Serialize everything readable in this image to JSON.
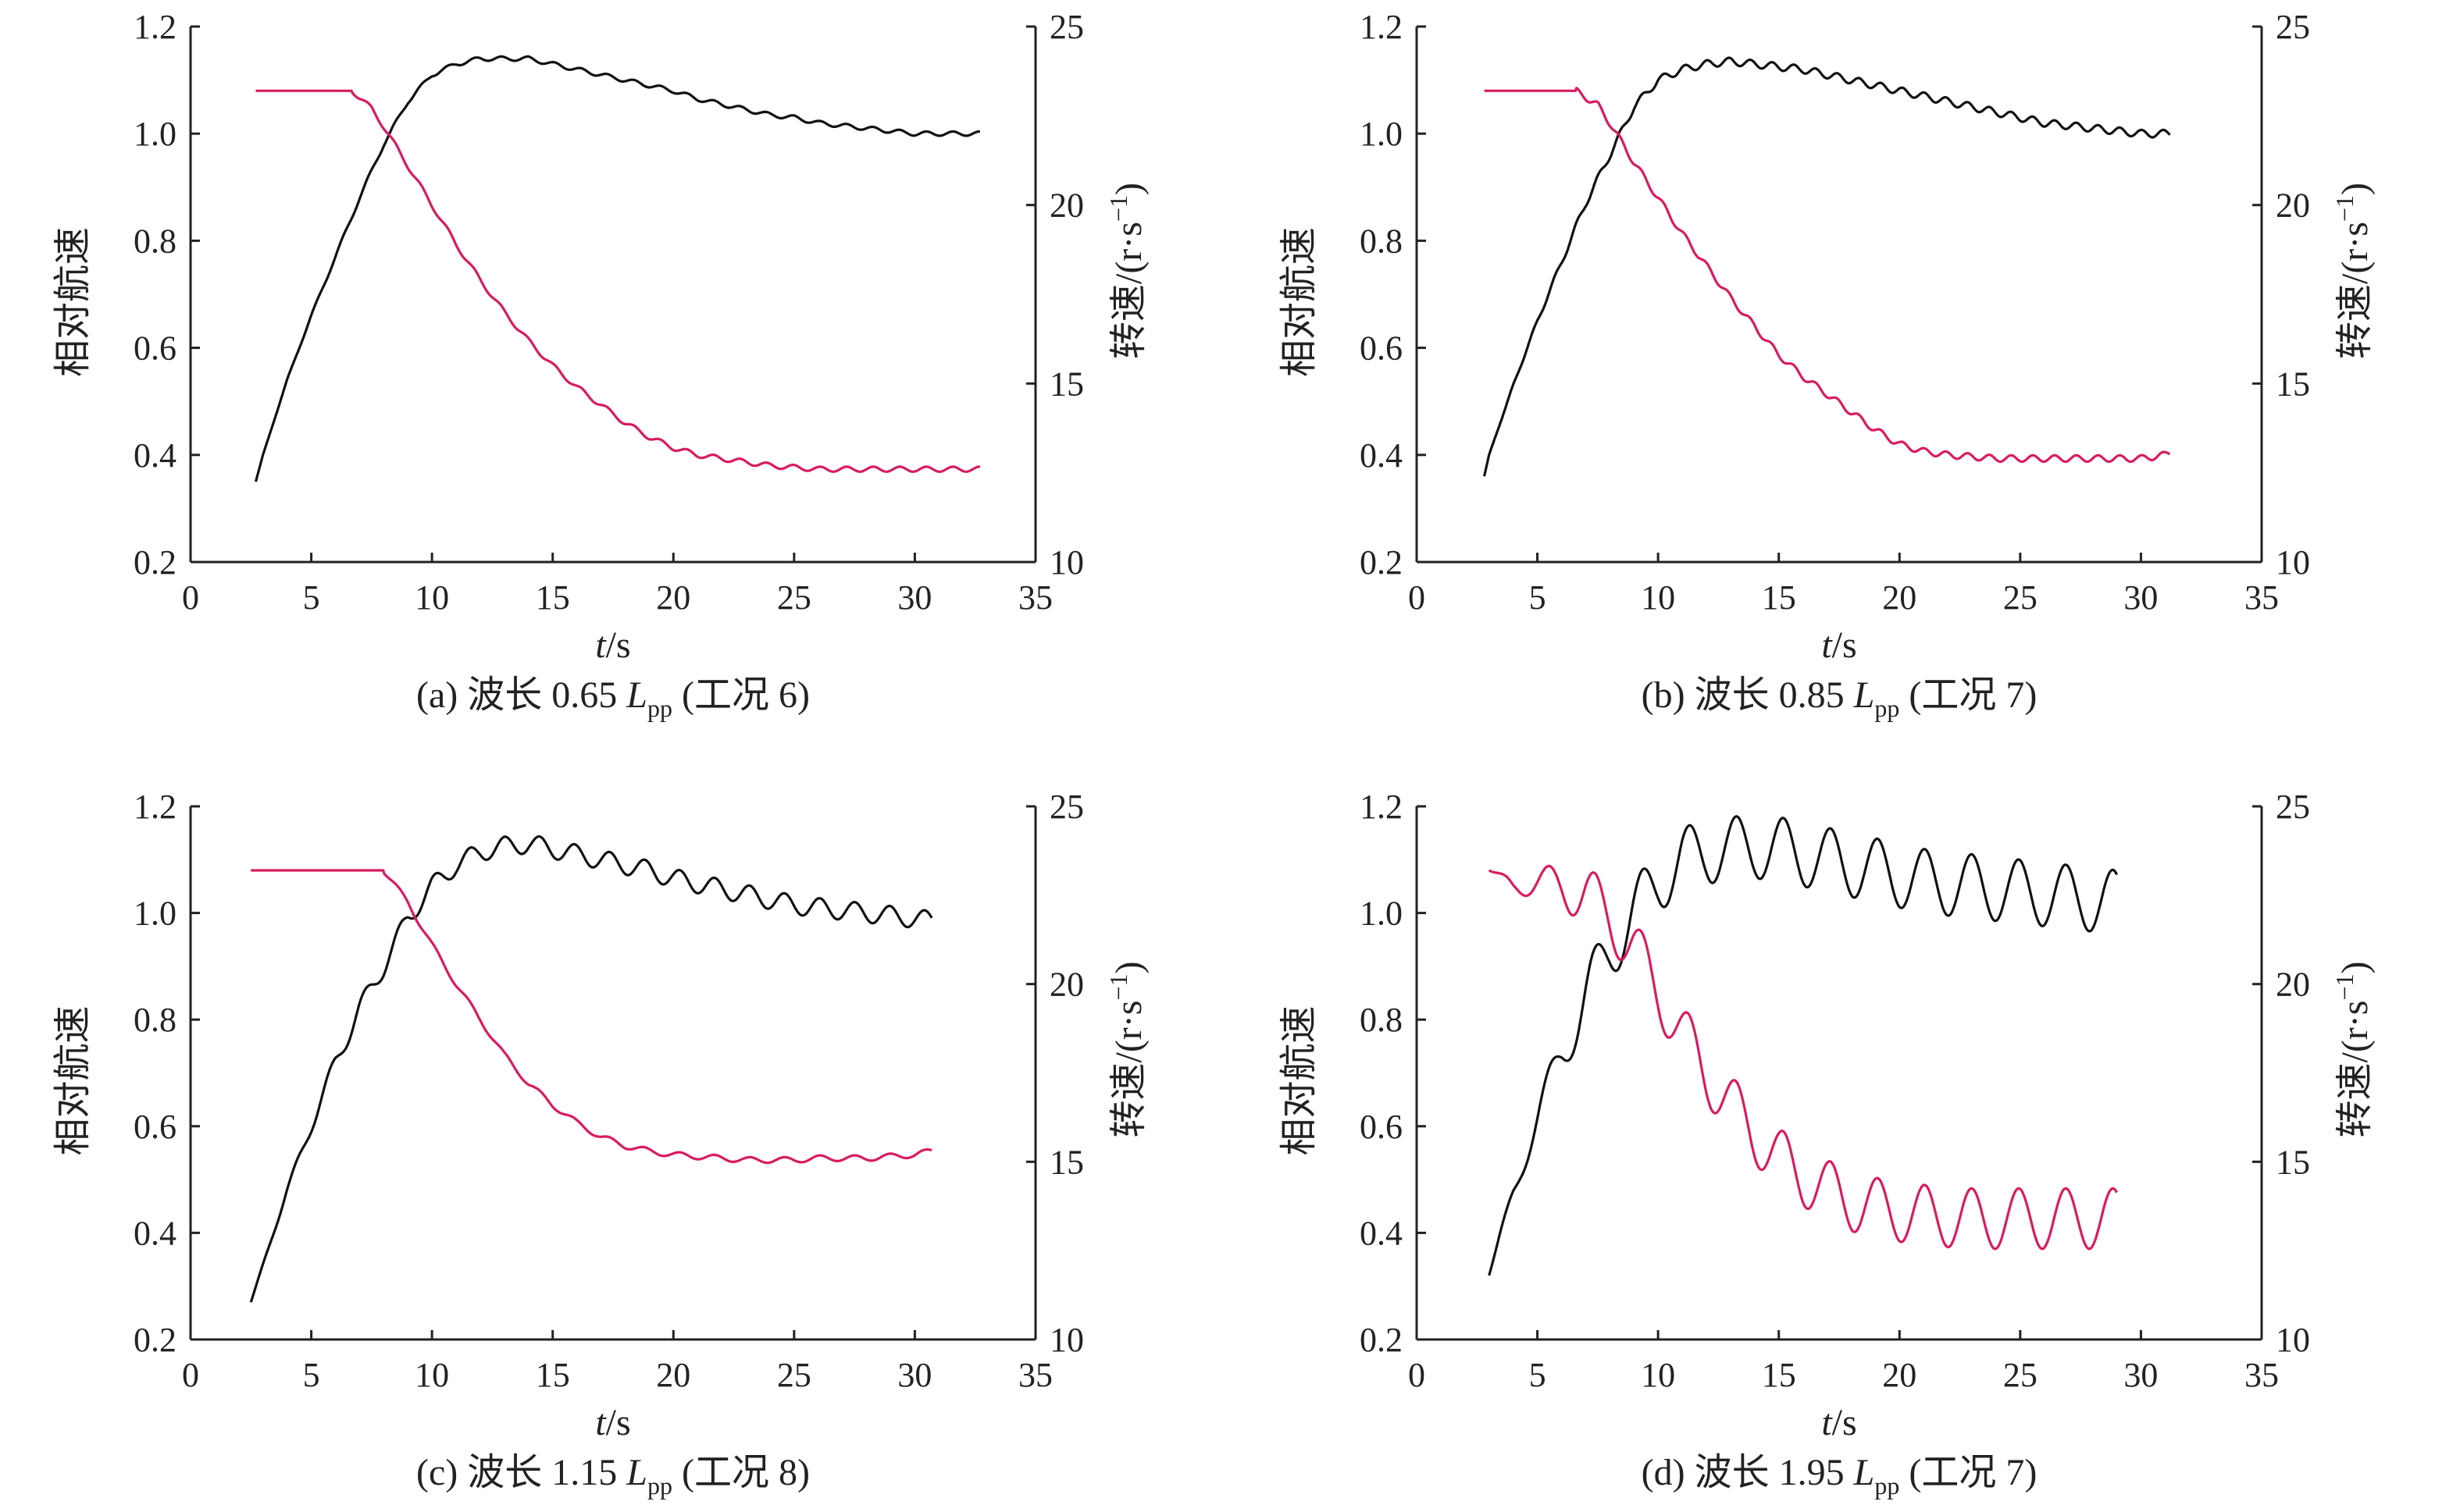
{
  "figure": {
    "panels": [
      {
        "caption_prefix": "(a) 波长 0.65 ",
        "caption_symbol": "L",
        "caption_subscript": "pp",
        "caption_suffix": " (工况 6)"
      },
      {
        "caption_prefix": "(b) 波长 0.85 ",
        "caption_symbol": "L",
        "caption_subscript": "pp",
        "caption_suffix": " (工况 7)"
      },
      {
        "caption_prefix": "(c) 波长 1.15 ",
        "caption_symbol": "L",
        "caption_subscript": "pp",
        "caption_suffix": " (工况 8)"
      },
      {
        "caption_prefix": "(d) 波长 1.95 ",
        "caption_symbol": "L",
        "caption_subscript": "pp",
        "caption_suffix": " (工况 7)"
      }
    ],
    "xlabel_var": "t",
    "xlabel_unit": "/s",
    "ylabel_left": "相对航速",
    "ylabel_right_prefix": "转速/(r·s",
    "ylabel_right_sup": "−1",
    "ylabel_right_suffix": ")"
  },
  "chart_data": [
    {
      "type": "line",
      "xlabel": "t/s",
      "ylabel": "相对航速",
      "ylabel_right": "转速/(r·s−1)",
      "xlim": [
        0,
        35
      ],
      "ylim": [
        0.2,
        1.2
      ],
      "ylim_right": [
        10,
        25
      ],
      "xticks": [
        0,
        5,
        10,
        15,
        20,
        25,
        30,
        35
      ],
      "yticks": [
        0.2,
        0.4,
        0.6,
        0.8,
        1.0,
        1.2
      ],
      "yticks_right": [
        10,
        15,
        20,
        25
      ],
      "series": [
        {
          "axis": "left",
          "color": "#111111",
          "x": [
            2.7,
            3,
            4,
            5,
            6,
            7,
            8,
            9,
            10,
            11,
            12,
            13,
            14,
            15,
            16,
            17,
            18,
            19,
            20,
            21,
            22,
            23,
            24,
            25,
            26,
            27,
            28,
            29,
            30,
            31,
            32,
            32.7
          ],
          "y": [
            0.35,
            0.4,
            0.54,
            0.66,
            0.77,
            0.88,
            0.98,
            1.06,
            1.11,
            1.13,
            1.14,
            1.14,
            1.14,
            1.13,
            1.12,
            1.11,
            1.1,
            1.09,
            1.08,
            1.065,
            1.055,
            1.045,
            1.035,
            1.03,
            1.02,
            1.015,
            1.01,
            1.005,
            1.0,
            1.0,
            1.0,
            1.0
          ],
          "ripple": {
            "amplitude": 0.004,
            "period": 1.1
          }
        },
        {
          "axis": "right",
          "color": "#d81b60",
          "x": [
            2.7,
            6.7,
            7.5,
            8,
            9,
            10,
            11,
            12,
            13,
            14,
            15,
            16,
            17,
            18,
            19,
            20,
            21,
            22,
            23,
            24,
            25,
            26,
            27,
            28,
            29,
            30,
            31,
            32,
            32.7
          ],
          "y": [
            23.2,
            23.2,
            22.7,
            22.2,
            21.1,
            20.0,
            18.9,
            17.9,
            17.0,
            16.2,
            15.5,
            14.9,
            14.4,
            13.9,
            13.5,
            13.2,
            13.0,
            12.9,
            12.8,
            12.7,
            12.65,
            12.6,
            12.6,
            12.6,
            12.6,
            12.6,
            12.6,
            12.6,
            12.6
          ],
          "ripple": {
            "amplitude": 0.07,
            "period": 1.1
          }
        }
      ]
    },
    {
      "type": "line",
      "xlabel": "t/s",
      "ylabel": "相对航速",
      "ylabel_right": "转速/(r·s−1)",
      "xlim": [
        0,
        35
      ],
      "ylim": [
        0.2,
        1.2
      ],
      "ylim_right": [
        10,
        25
      ],
      "xticks": [
        0,
        5,
        10,
        15,
        20,
        25,
        30,
        35
      ],
      "yticks": [
        0.2,
        0.4,
        0.6,
        0.8,
        1.0,
        1.2
      ],
      "yticks_right": [
        10,
        15,
        20,
        25
      ],
      "series": [
        {
          "axis": "left",
          "color": "#111111",
          "x": [
            2.8,
            3,
            4,
            5,
            6,
            7,
            8,
            9,
            10,
            11,
            12,
            13,
            14,
            15,
            16,
            17,
            18,
            19,
            20,
            21,
            22,
            23,
            24,
            25,
            26,
            27,
            28,
            29,
            30,
            31,
            31.2
          ],
          "y": [
            0.36,
            0.4,
            0.53,
            0.65,
            0.76,
            0.87,
            0.96,
            1.05,
            1.1,
            1.12,
            1.13,
            1.135,
            1.13,
            1.125,
            1.12,
            1.11,
            1.1,
            1.09,
            1.08,
            1.07,
            1.06,
            1.05,
            1.04,
            1.03,
            1.02,
            1.015,
            1.01,
            1.005,
            1.0,
            1.0,
            1.0
          ],
          "ripple": {
            "amplitude": 0.007,
            "period": 0.9
          }
        },
        {
          "axis": "right",
          "color": "#d81b60",
          "x": [
            2.8,
            6.6,
            7.5,
            8,
            9,
            10,
            11,
            12,
            13,
            14,
            15,
            16,
            17,
            18,
            19,
            20,
            21,
            22,
            23,
            24,
            25,
            26,
            27,
            28,
            29,
            30,
            31,
            31.2
          ],
          "y": [
            23.2,
            23.2,
            22.8,
            22.3,
            21.2,
            20.2,
            19.2,
            18.3,
            17.4,
            16.6,
            15.8,
            15.2,
            14.7,
            14.2,
            13.7,
            13.3,
            13.1,
            13.0,
            12.95,
            12.9,
            12.9,
            12.9,
            12.9,
            12.9,
            12.9,
            12.9,
            13.0,
            13.05
          ],
          "ripple": {
            "amplitude": 0.09,
            "period": 0.9
          }
        }
      ]
    },
    {
      "type": "line",
      "xlabel": "t/s",
      "ylabel": "相对航速",
      "ylabel_right": "转速/(r·s−1)",
      "xlim": [
        0,
        35
      ],
      "ylim": [
        0.2,
        1.2
      ],
      "ylim_right": [
        10,
        25
      ],
      "xticks": [
        0,
        5,
        10,
        15,
        20,
        25,
        30,
        35
      ],
      "yticks": [
        0.2,
        0.4,
        0.6,
        0.8,
        1.0,
        1.2
      ],
      "yticks_right": [
        10,
        15,
        20,
        25
      ],
      "series": [
        {
          "axis": "left",
          "color": "#111111",
          "x": [
            2.5,
            3,
            4,
            5,
            6,
            7,
            8,
            9,
            10,
            11,
            12,
            13,
            14,
            15,
            16,
            17,
            18,
            19,
            20,
            21,
            22,
            23,
            24,
            25,
            26,
            27,
            28,
            29,
            30,
            30.7
          ],
          "y": [
            0.27,
            0.34,
            0.48,
            0.6,
            0.72,
            0.82,
            0.9,
            0.99,
            1.05,
            1.09,
            1.115,
            1.125,
            1.13,
            1.12,
            1.11,
            1.1,
            1.09,
            1.08,
            1.065,
            1.055,
            1.045,
            1.035,
            1.025,
            1.015,
            1.01,
            1.005,
            1.0,
            0.995,
            0.99,
            0.985
          ],
          "ripple": {
            "amplitude": 0.018,
            "period": 1.45
          }
        },
        {
          "axis": "right",
          "color": "#d81b60",
          "x": [
            2.5,
            8.0,
            9,
            10,
            11,
            12,
            13,
            14,
            15,
            16,
            17,
            18,
            19,
            20,
            21,
            22,
            23,
            24,
            25,
            26,
            27,
            28,
            29,
            30,
            30.7
          ],
          "y": [
            23.2,
            23.2,
            22.3,
            21.1,
            20.0,
            19.0,
            18.0,
            17.2,
            16.6,
            16.1,
            15.7,
            15.45,
            15.3,
            15.2,
            15.15,
            15.1,
            15.05,
            15.05,
            15.05,
            15.1,
            15.1,
            15.1,
            15.15,
            15.2,
            15.3
          ],
          "ripple": {
            "amplitude": 0.08,
            "period": 1.45
          }
        }
      ]
    },
    {
      "type": "line",
      "xlabel": "t/s",
      "ylabel": "相对航速",
      "ylabel_right": "转速/(r·s−1)",
      "xlim": [
        0,
        35
      ],
      "ylim": [
        0.2,
        1.2
      ],
      "ylim_right": [
        10,
        25
      ],
      "xticks": [
        0,
        5,
        10,
        15,
        20,
        25,
        30,
        35
      ],
      "yticks": [
        0.2,
        0.4,
        0.6,
        0.8,
        1.0,
        1.2
      ],
      "yticks_right": [
        10,
        15,
        20,
        25
      ],
      "series": [
        {
          "axis": "left",
          "color": "#111111",
          "x": [
            3.0,
            4,
            5,
            6,
            7,
            8,
            9,
            10,
            11,
            12,
            13,
            14,
            15,
            16,
            17,
            18,
            19,
            20,
            21,
            22,
            23,
            24,
            25,
            26,
            27,
            28,
            29
          ],
          "y": [
            0.32,
            0.48,
            0.61,
            0.74,
            0.84,
            0.93,
            1.0,
            1.06,
            1.1,
            1.115,
            1.12,
            1.125,
            1.12,
            1.11,
            1.1,
            1.09,
            1.08,
            1.07,
            1.06,
            1.055,
            1.05,
            1.045,
            1.04,
            1.035,
            1.03,
            1.025,
            1.02
          ],
          "ripple": {
            "amplitude": 0.06,
            "period": 1.95
          }
        },
        {
          "axis": "right",
          "color": "#d81b60",
          "x": [
            3.0,
            4,
            5,
            6,
            7,
            8,
            9,
            10,
            11,
            12,
            13,
            14,
            15,
            16,
            17,
            18,
            19,
            20,
            21,
            22,
            23,
            24,
            25,
            26,
            27,
            28,
            29
          ],
          "y": [
            23.2,
            22.8,
            22.8,
            22.8,
            22.5,
            21.9,
            21.0,
            19.8,
            18.6,
            17.5,
            16.6,
            15.8,
            15.1,
            14.6,
            14.2,
            13.9,
            13.7,
            13.6,
            13.5,
            13.45,
            13.4,
            13.4,
            13.4,
            13.4,
            13.4,
            13.4,
            13.4
          ],
          "ripple": {
            "amplitude": 0.85,
            "period": 1.95
          }
        }
      ]
    }
  ]
}
